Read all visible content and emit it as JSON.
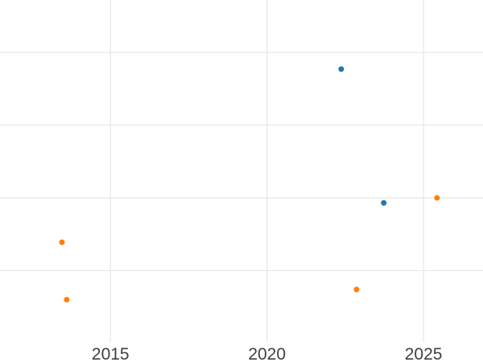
{
  "chart_data": {
    "type": "scatter",
    "title": "",
    "xlabel": "",
    "ylabel": "",
    "grid": true,
    "legend_position": "none",
    "x_axis": {
      "tick_labels": [
        "2015",
        "2020",
        "2025"
      ],
      "tick_values": [
        2015,
        2020,
        2025
      ],
      "visible_range": [
        2011.47,
        2026.9
      ]
    },
    "y_axis": {
      "tick_labels": [],
      "gridline_values": [
        1,
        2,
        3,
        4
      ],
      "visible_range": [
        0.02,
        4.72
      ],
      "note": "no y-axis tick labels are visible in the screenshot; y values estimated in gridline units, one unit per horizontal gridline counted up from the bottom of the plot"
    },
    "series": [
      {
        "name": "blue",
        "color": "#1f77b4",
        "points": [
          {
            "x": 2022.37,
            "y": 3.77
          },
          {
            "x": 2023.73,
            "y": 1.93
          }
        ]
      },
      {
        "name": "orange",
        "color": "#ff7f0e",
        "points": [
          {
            "x": 2013.45,
            "y": 1.39
          },
          {
            "x": 2013.6,
            "y": 0.6
          },
          {
            "x": 2022.86,
            "y": 0.74
          },
          {
            "x": 2025.43,
            "y": 2.0
          }
        ]
      }
    ],
    "style": {
      "background_color": "#ffffff",
      "gridline_color": "#e8e8e8",
      "tick_label_color": "#3f3f3f",
      "marker_radius_px": 3.5
    }
  }
}
